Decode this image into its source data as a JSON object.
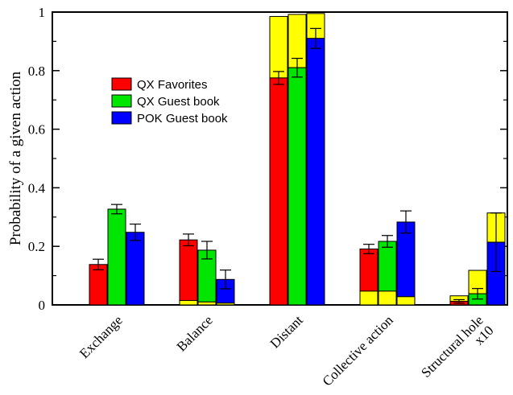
{
  "chart_data": {
    "type": "bar",
    "ylabel": "Probability of a given action",
    "ylim": [
      0,
      1
    ],
    "yticks": [
      "0",
      "0.2",
      "0.4",
      "0.6",
      "0.8",
      "1"
    ],
    "categories": [
      {
        "lines": [
          "Exchange"
        ]
      },
      {
        "lines": [
          "Balance"
        ]
      },
      {
        "lines": [
          "Distant"
        ]
      },
      {
        "lines": [
          "Collective action"
        ]
      },
      {
        "lines": [
          "Structural hole",
          "x10"
        ]
      }
    ],
    "series": [
      {
        "name": "QX Favorites",
        "color": "#ff0000",
        "values": [
          0.138,
          0.222,
          0.775,
          0.191,
          0.012
        ],
        "errors": [
          0.018,
          0.02,
          0.022,
          0.016,
          0.006
        ],
        "stacked_yellow_top": [
          0.138,
          0.222,
          0.985,
          0.191,
          0.031
        ],
        "yellow_bottom_segment": [
          0.0,
          0.015,
          0.0,
          0.047,
          0.0
        ]
      },
      {
        "name": "QX Guest book",
        "color": "#00e600",
        "values": [
          0.327,
          0.187,
          0.81,
          0.217,
          0.038
        ],
        "errors": [
          0.016,
          0.03,
          0.032,
          0.02,
          0.018
        ],
        "stacked_yellow_top": [
          0.327,
          0.187,
          0.992,
          0.217,
          0.118
        ],
        "yellow_bottom_segment": [
          0.0,
          0.01,
          0.0,
          0.047,
          0.0
        ]
      },
      {
        "name": "POK Guest book",
        "color": "#0000ff",
        "values": [
          0.248,
          0.087,
          0.91,
          0.283,
          0.214
        ],
        "errors": [
          0.028,
          0.032,
          0.034,
          0.038,
          0.1
        ],
        "stacked_yellow_top": [
          0.248,
          0.087,
          0.995,
          0.283,
          0.314
        ],
        "yellow_bottom_segment": [
          0.0,
          0.006,
          0.0,
          0.028,
          0.0
        ]
      }
    ],
    "extra_segment_color": "#ffff00",
    "legend": {
      "placement": "upper-left"
    }
  }
}
